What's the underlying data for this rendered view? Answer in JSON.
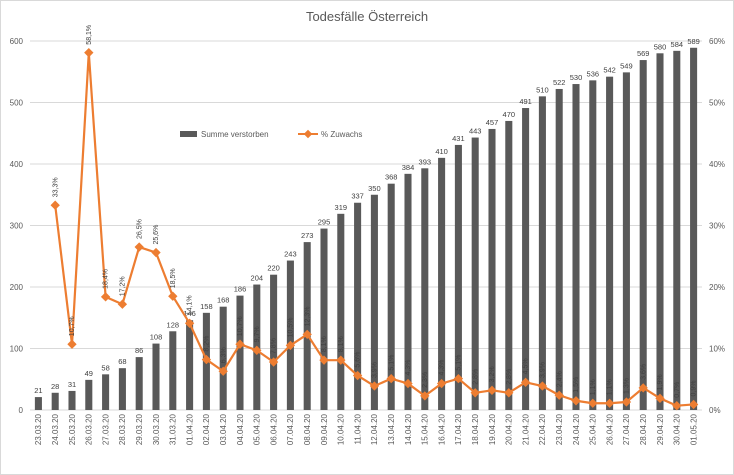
{
  "chart_data": {
    "type": "bar",
    "title": "Todesfälle Österreich",
    "categories": [
      "23.03.20",
      "24.03.20",
      "25.03.20",
      "26.03.20",
      "27.03.20",
      "28.03.20",
      "29.03.20",
      "30.03.20",
      "31.03.20",
      "01.04.20",
      "02.04.20",
      "03.04.20",
      "04.04.20",
      "05.04.20",
      "06.04.20",
      "07.04.20",
      "08.04.20",
      "09.04.20",
      "10.04.20",
      "11.04.20",
      "12.04.20",
      "13.04.20",
      "14.04.20",
      "15.04.20",
      "16.04.20",
      "17.04.20",
      "18.04.20",
      "19.04.20",
      "20.04.20",
      "21.04.20",
      "22.04.20",
      "23.04.20",
      "24.04.20",
      "25.04.20",
      "26.04.20",
      "27.04.20",
      "28.04.20",
      "29.04.20",
      "30.04.20",
      "01.05.20"
    ],
    "series": [
      {
        "name": "Summe verstorben",
        "type": "bar",
        "axis": "left",
        "color": "#595959",
        "values": [
          21,
          28,
          31,
          49,
          58,
          68,
          86,
          108,
          128,
          146,
          158,
          168,
          186,
          204,
          220,
          243,
          273,
          295,
          319,
          337,
          350,
          368,
          384,
          393,
          410,
          431,
          443,
          457,
          470,
          491,
          510,
          522,
          530,
          536,
          542,
          549,
          569,
          580,
          584,
          589
        ]
      },
      {
        "name": "% Zuwachs",
        "type": "line",
        "axis": "right",
        "color": "#ed7d31",
        "values": [
          null,
          33.3,
          10.7,
          58.1,
          18.4,
          17.2,
          26.5,
          25.6,
          18.5,
          14.1,
          8.2,
          6.3,
          10.7,
          9.7,
          7.8,
          10.5,
          12.3,
          8.1,
          8.1,
          5.6,
          3.9,
          5.1,
          4.3,
          2.3,
          4.3,
          5.1,
          2.8,
          3.2,
          2.8,
          4.5,
          3.9,
          2.4,
          1.5,
          1.1,
          1.1,
          1.3,
          3.6,
          1.9,
          0.7,
          0.9
        ],
        "labels": [
          "",
          "33,3%",
          "10,7%",
          "58,1%",
          "18,4%",
          "17,2%",
          "26,5%",
          "25,6%",
          "18,5%",
          "14,1%",
          "8,2%",
          "6,3%",
          "10,7%",
          "9,7%",
          "7,8%",
          "10,5%",
          "12,3%",
          "8,1%",
          "8,1%",
          "5,6%",
          "3,9%",
          "5,1%",
          "4,3%",
          "2,3%",
          "4,3%",
          "5,1%",
          "2,8%",
          "3,2%",
          "2,8%",
          "4,5%",
          "3,9%",
          "2,4%",
          "1,5%",
          "1,1%",
          "1,1%",
          "1,3%",
          "3,6%",
          "1,9%",
          "0,7%",
          "0,9%"
        ]
      }
    ],
    "y_left": {
      "min": 0,
      "max": 600,
      "step": 100,
      "ticks": [
        "0",
        "100",
        "200",
        "300",
        "400",
        "500",
        "600"
      ]
    },
    "y_right": {
      "min": 0,
      "max": 60,
      "step": 10,
      "ticks": [
        "0%",
        "10%",
        "20%",
        "30%",
        "40%",
        "50%",
        "60%"
      ]
    },
    "grid": true,
    "legend_position": "upper-left inside plot"
  }
}
